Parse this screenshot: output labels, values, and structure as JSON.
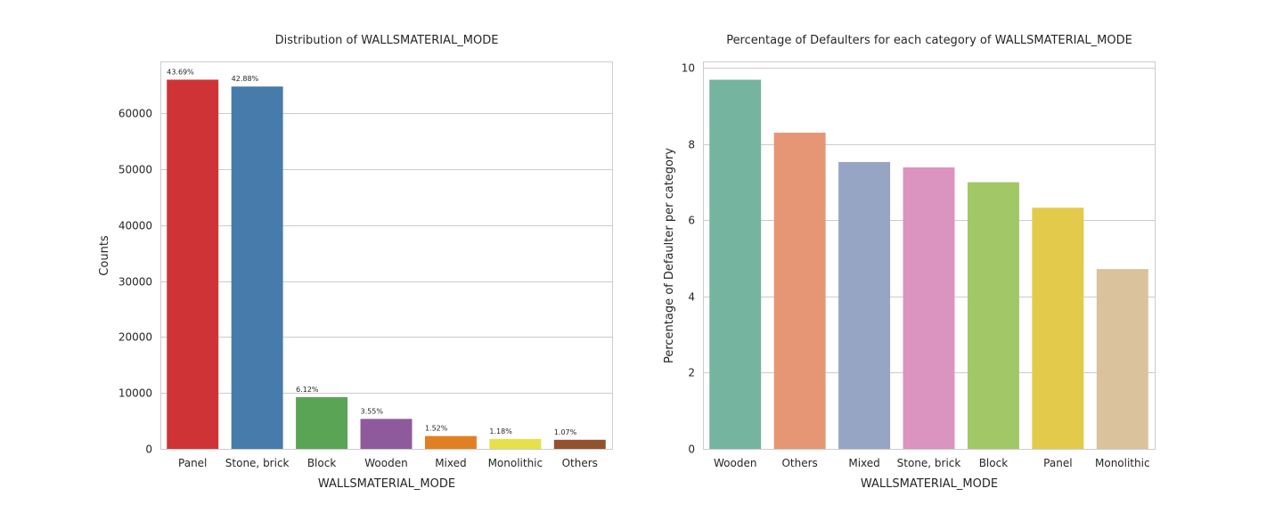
{
  "chart_data": [
    {
      "type": "bar",
      "title": "Distribution of WALLSMATERIAL_MODE",
      "xlabel": "WALLSMATERIAL_MODE",
      "ylabel": "Counts",
      "categories": [
        "Panel",
        "Stone, brick",
        "Block",
        "Wooden",
        "Mixed",
        "Monolithic",
        "Others"
      ],
      "values": [
        66040,
        64815,
        9253,
        5362,
        2296,
        1780,
        1625
      ],
      "data_labels": [
        "43.69%",
        "42.88%",
        "6.12%",
        "3.55%",
        "1.52%",
        "1.18%",
        "1.07%"
      ],
      "colors": [
        "#d03336",
        "#477bab",
        "#5aa456",
        "#8f5a9c",
        "#e07f24",
        "#e6e14a",
        "#92522d"
      ],
      "ylim": [
        0,
        69300
      ],
      "yticks": [
        0,
        10000,
        20000,
        30000,
        40000,
        50000,
        60000
      ],
      "grid": true
    },
    {
      "type": "bar",
      "title": "Percentage of Defaulters for each category of WALLSMATERIAL_MODE",
      "xlabel": "WALLSMATERIAL_MODE",
      "ylabel": "Percentage of Defaulter per category",
      "categories": [
        "Wooden",
        "Others",
        "Mixed",
        "Stone, brick",
        "Block",
        "Panel",
        "Monolithic"
      ],
      "values": [
        9.69,
        8.3,
        7.53,
        7.39,
        7.0,
        6.33,
        4.72
      ],
      "colors": [
        "#75b5a0",
        "#e69674",
        "#95a5c3",
        "#da94bf",
        "#a2c766",
        "#e4ca4b",
        "#d9c29c"
      ],
      "ylim": [
        0,
        10.17
      ],
      "yticks": [
        0,
        2,
        4,
        6,
        8,
        10
      ],
      "grid": true
    }
  ]
}
